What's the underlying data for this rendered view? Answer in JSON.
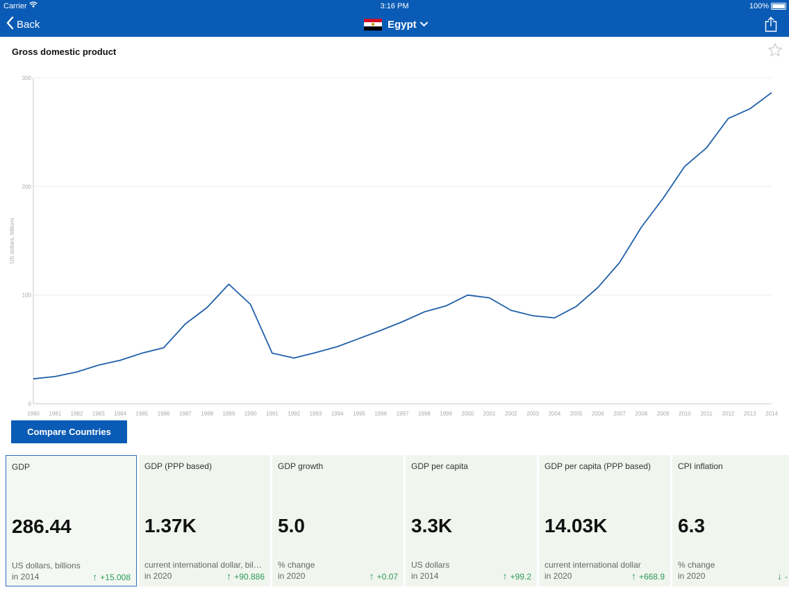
{
  "status": {
    "carrier": "Carrier",
    "time": "3:16 PM",
    "battery": "100%"
  },
  "nav": {
    "back_label": "Back",
    "country": "Egypt"
  },
  "page": {
    "title": "Gross domestic product"
  },
  "compare_label": "Compare Countries",
  "chart_data": {
    "type": "line",
    "ylabel": "US dollars, billions",
    "xlabel": "",
    "ylim": [
      0,
      300
    ],
    "yticks": [
      0,
      100,
      200,
      300
    ],
    "grid": true,
    "x": [
      1980,
      1981,
      1982,
      1983,
      1984,
      1985,
      1986,
      1987,
      1988,
      1989,
      1990,
      1991,
      1992,
      1993,
      1994,
      1995,
      1996,
      1997,
      1998,
      1999,
      2000,
      2001,
      2002,
      2003,
      2004,
      2005,
      2006,
      2007,
      2008,
      2009,
      2010,
      2011,
      2012,
      2013,
      2014
    ],
    "series": [
      {
        "name": "",
        "color": "#1f5fa8",
        "values": [
          22.9,
          25.0,
          29.2,
          35.5,
          40.0,
          46.5,
          51.5,
          73.5,
          88.5,
          110.0,
          91.5,
          46.5,
          42.0,
          47.0,
          52.5,
          60.0,
          67.5,
          75.5,
          84.5,
          90.0,
          100.0,
          97.5,
          86.0,
          81.0,
          79.0,
          89.5,
          107.0,
          130.0,
          162.5,
          189.0,
          218.5,
          235.5,
          262.5,
          271.5,
          286.4
        ]
      }
    ]
  },
  "cards": [
    {
      "name": "GDP",
      "value": "286.44",
      "unit": "US dollars, billions",
      "period": "in 2014",
      "direction": "up",
      "change": "+15.008"
    },
    {
      "name": "GDP (PPP based)",
      "value": "1.37K",
      "unit": "current international dollar, billions",
      "period": "in 2020",
      "direction": "up",
      "change": "+90.886"
    },
    {
      "name": "GDP growth",
      "value": "5.0",
      "unit": "% change",
      "period": "in 2020",
      "direction": "up",
      "change": "+0.07"
    },
    {
      "name": "GDP per capita",
      "value": "3.3K",
      "unit": "US dollars",
      "period": "in 2014",
      "direction": "up",
      "change": "+99.2"
    },
    {
      "name": "GDP per capita (PPP based)",
      "value": "14.03K",
      "unit": "current international dollar",
      "period": "in 2020",
      "direction": "up",
      "change": "+668.9"
    },
    {
      "name": "CPI inflation",
      "value": "6.3",
      "unit": "% change",
      "period": "in 2020",
      "direction": "down",
      "change": "-"
    }
  ]
}
